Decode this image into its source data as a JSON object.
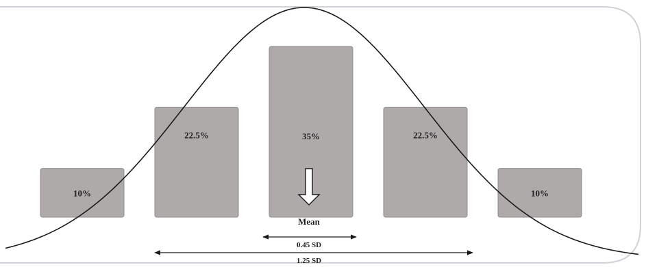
{
  "chart_data": {
    "type": "bar",
    "categories": [
      "",
      "",
      "",
      "",
      ""
    ],
    "values": [
      10,
      22.5,
      35,
      22.5,
      10
    ],
    "value_labels": [
      "10%",
      "22.5%",
      "35%",
      "22.5%",
      "10%"
    ],
    "unit": "%",
    "ylim": [
      0,
      42
    ],
    "overlay_curve": "normal distribution",
    "annotations": {
      "mean_label": "Mean",
      "inner_span_label": "0.45 SD",
      "outer_span_label": "1.25 SD"
    },
    "grid": false,
    "legend": "none"
  },
  "colors": {
    "bar_fill": "#aeaaaa",
    "bar_stroke": "#8f8b8b",
    "curve": "#1a1a1a",
    "frame": "#cfd3d8",
    "text": "#222222",
    "arrow_fill": "#ffffff",
    "arrow_stroke": "#1a1a1a"
  }
}
